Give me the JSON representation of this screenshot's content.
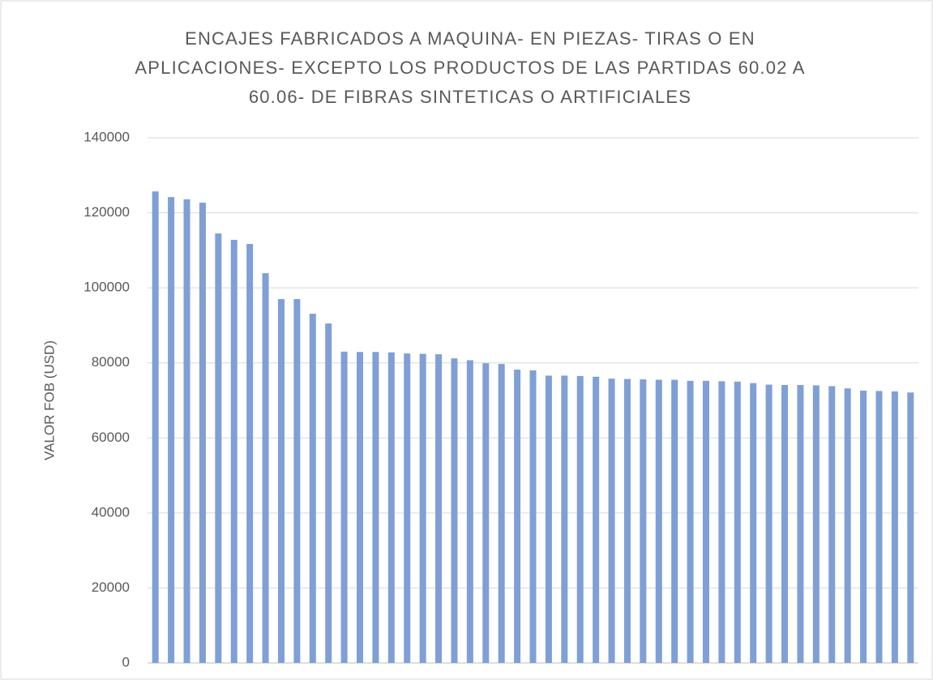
{
  "chart_data": {
    "type": "bar",
    "title": [
      "ENCAJES FABRICADOS A MAQUINA- EN PIEZAS- TIRAS O EN",
      "APLICACIONES- EXCEPTO LOS PRODUCTOS DE LAS PARTIDAS 60.02 A",
      "60.06- DE FIBRAS SINTETICAS O ARTIFICIALES"
    ],
    "y_label": "VALOR FOB (USD)",
    "categories": [
      null,
      null,
      null,
      null,
      null,
      null,
      null,
      null,
      null,
      null,
      null,
      null,
      null,
      null,
      null,
      null,
      null,
      null,
      null,
      null,
      null,
      null,
      null,
      null,
      null,
      null,
      null,
      null,
      null,
      null,
      null,
      null,
      null,
      null,
      null,
      null,
      null,
      null,
      null,
      null,
      null,
      null,
      null,
      null,
      null,
      null,
      null,
      null,
      null
    ],
    "values": [
      125700,
      124200,
      123600,
      122700,
      114500,
      112800,
      111700,
      103900,
      97000,
      97000,
      93100,
      90500,
      83000,
      82900,
      82900,
      82800,
      82500,
      82400,
      82300,
      81200,
      80700,
      79900,
      79700,
      78200,
      78000,
      76600,
      76600,
      76500,
      76300,
      75800,
      75700,
      75600,
      75500,
      75500,
      75200,
      75200,
      75100,
      75000,
      74600,
      74200,
      74100,
      74100,
      74000,
      73800,
      73200,
      72600,
      72500,
      72400,
      72100
    ],
    "color": "#7f9fd6",
    "ylim": [
      0,
      140000
    ],
    "yticks": [
      0,
      20000,
      40000,
      60000,
      80000,
      100000,
      120000,
      140000
    ],
    "grid": true
  }
}
